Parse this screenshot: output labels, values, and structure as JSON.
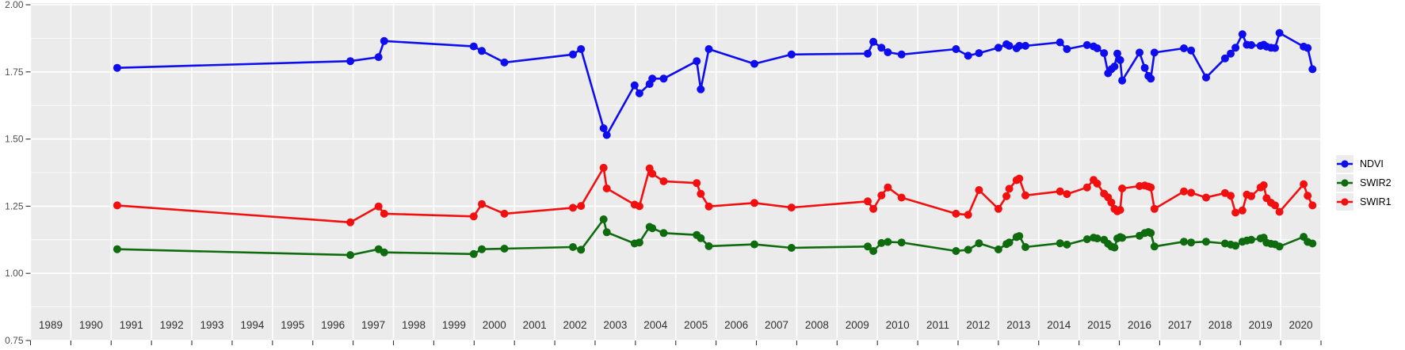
{
  "chart": {
    "panel_bg": "#ebebeb",
    "grid_color": "#ffffff",
    "axis_text_color": "#4d4d4d",
    "year_text_color": "#303030",
    "tick_color": "#333333",
    "y_axis": {
      "tick_labels": [
        "2.00",
        "1.75",
        "1.50",
        "1.25",
        "1.00",
        "0.75"
      ],
      "tick_values": [
        2.0,
        1.75,
        1.5,
        1.25,
        1.0,
        0.75
      ],
      "minor_values": [
        1.875,
        1.625,
        1.375,
        1.125,
        0.875
      ]
    },
    "x_axis": {
      "year_labels": [
        "1989",
        "1990",
        "1991",
        "1992",
        "1993",
        "1994",
        "1995",
        "1996",
        "1997",
        "1998",
        "1999",
        "2000",
        "2001",
        "2002",
        "2003",
        "2004",
        "2005",
        "2006",
        "2007",
        "2008",
        "2009",
        "2010",
        "2011",
        "2012",
        "2013",
        "2014",
        "2015",
        "2016",
        "2017",
        "2018",
        "2019",
        "2020"
      ]
    },
    "legend": [
      {
        "label": "NDVI",
        "color": "#0d0dee"
      },
      {
        "label": "SWIR2",
        "color": "#0e6b0e"
      },
      {
        "label": "SWIR1",
        "color": "#f20f0f"
      }
    ]
  },
  "chart_data": {
    "type": "line",
    "title": "",
    "xlabel": "",
    "ylabel": "",
    "xlim": [
      1989,
      2021
    ],
    "ylim": [
      0.75,
      2.0
    ],
    "grid": true,
    "legend_position": "right",
    "x": [
      1991.15,
      1996.93,
      1997.63,
      1997.77,
      1999.99,
      2000.19,
      2000.75,
      2002.45,
      2002.65,
      2003.21,
      2003.29,
      2003.98,
      2004.1,
      2004.35,
      2004.42,
      2004.7,
      2005.52,
      2005.62,
      2005.82,
      2006.95,
      2007.87,
      2009.76,
      2009.9,
      2010.1,
      2010.26,
      2010.6,
      2011.95,
      2012.25,
      2012.52,
      2013.0,
      2013.2,
      2013.27,
      2013.45,
      2013.52,
      2013.67,
      2014.53,
      2014.7,
      2015.2,
      2015.36,
      2015.45,
      2015.62,
      2015.72,
      2015.8,
      2015.88,
      2015.95,
      2016.02,
      2016.07,
      2016.5,
      2016.63,
      2016.72,
      2016.78,
      2016.87,
      2017.6,
      2017.78,
      2018.15,
      2018.62,
      2018.76,
      2018.88,
      2019.05,
      2019.16,
      2019.27,
      2019.5,
      2019.58,
      2019.65,
      2019.76,
      2019.86,
      2019.97,
      2020.57,
      2020.67,
      2020.79
    ],
    "series": [
      {
        "name": "NDVI",
        "color": "#0d0dee",
        "values": [
          1.765,
          1.79,
          1.805,
          1.865,
          1.845,
          1.828,
          1.785,
          1.815,
          1.835,
          1.54,
          1.515,
          1.7,
          1.67,
          1.705,
          1.725,
          1.725,
          1.79,
          1.685,
          1.835,
          1.78,
          1.815,
          1.818,
          1.862,
          1.84,
          1.823,
          1.815,
          1.835,
          1.81,
          1.82,
          1.84,
          1.853,
          1.847,
          1.838,
          1.847,
          1.847,
          1.86,
          1.835,
          1.85,
          1.845,
          1.838,
          1.82,
          1.745,
          1.76,
          1.77,
          1.818,
          1.794,
          1.718,
          1.822,
          1.765,
          1.735,
          1.725,
          1.822,
          1.838,
          1.83,
          1.729,
          1.8,
          1.818,
          1.84,
          1.89,
          1.851,
          1.85,
          1.847,
          1.851,
          1.844,
          1.84,
          1.839,
          1.895,
          1.844,
          1.839,
          1.76
        ]
      },
      {
        "name": "SWIR2",
        "color": "#0e6b0e",
        "values": [
          1.09,
          1.068,
          1.09,
          1.078,
          1.072,
          1.09,
          1.092,
          1.098,
          1.088,
          1.201,
          1.153,
          1.111,
          1.115,
          1.173,
          1.168,
          1.15,
          1.143,
          1.131,
          1.101,
          1.108,
          1.095,
          1.1,
          1.083,
          1.113,
          1.117,
          1.115,
          1.083,
          1.088,
          1.112,
          1.089,
          1.109,
          1.115,
          1.135,
          1.139,
          1.098,
          1.112,
          1.107,
          1.127,
          1.133,
          1.13,
          1.125,
          1.11,
          1.1,
          1.096,
          1.13,
          1.135,
          1.132,
          1.14,
          1.15,
          1.154,
          1.15,
          1.1,
          1.118,
          1.115,
          1.118,
          1.111,
          1.107,
          1.103,
          1.118,
          1.122,
          1.125,
          1.13,
          1.133,
          1.114,
          1.11,
          1.108,
          1.1,
          1.136,
          1.117,
          1.111
        ]
      },
      {
        "name": "SWIR1",
        "color": "#f20f0f",
        "values": [
          1.253,
          1.19,
          1.249,
          1.222,
          1.212,
          1.258,
          1.222,
          1.244,
          1.251,
          1.393,
          1.316,
          1.256,
          1.25,
          1.391,
          1.371,
          1.343,
          1.336,
          1.296,
          1.249,
          1.262,
          1.245,
          1.268,
          1.24,
          1.29,
          1.32,
          1.282,
          1.222,
          1.218,
          1.31,
          1.24,
          1.287,
          1.315,
          1.347,
          1.353,
          1.29,
          1.305,
          1.295,
          1.32,
          1.348,
          1.334,
          1.297,
          1.283,
          1.264,
          1.24,
          1.231,
          1.236,
          1.316,
          1.325,
          1.327,
          1.323,
          1.32,
          1.24,
          1.305,
          1.3,
          1.282,
          1.299,
          1.289,
          1.226,
          1.234,
          1.293,
          1.287,
          1.32,
          1.328,
          1.28,
          1.263,
          1.253,
          1.229,
          1.332,
          1.289,
          1.253
        ]
      }
    ]
  }
}
